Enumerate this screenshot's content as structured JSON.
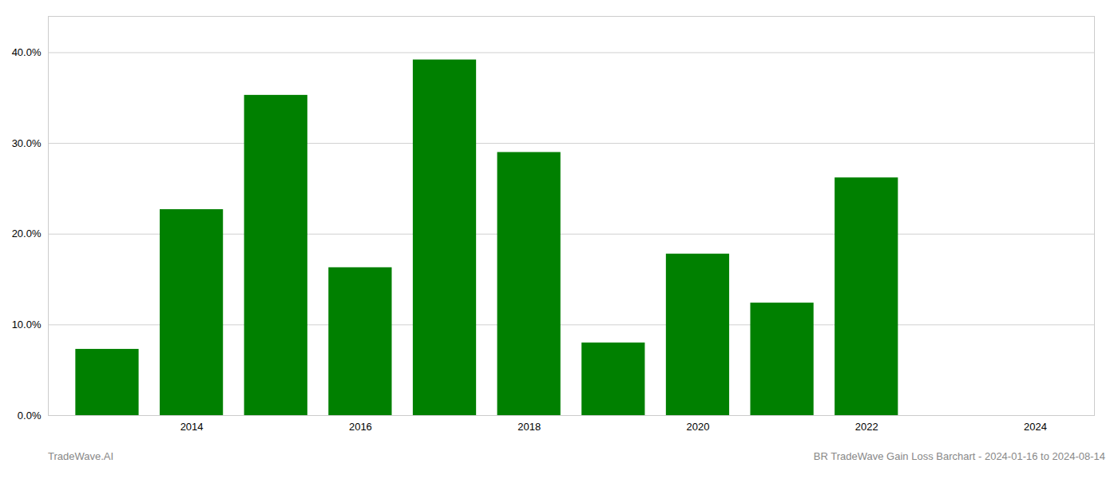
{
  "chart_data": {
    "type": "bar",
    "x": [
      2013,
      2014,
      2015,
      2016,
      2017,
      2018,
      2019,
      2020,
      2021,
      2022,
      2023
    ],
    "values": [
      0.073,
      0.227,
      0.353,
      0.163,
      0.392,
      0.29,
      0.08,
      0.178,
      0.124,
      0.262,
      0.0
    ],
    "color": "#008000",
    "xlim": [
      2012.3,
      2024.7
    ],
    "xticks": [
      2014,
      2016,
      2018,
      2020,
      2022,
      2024
    ],
    "ylim": [
      0,
      0.44
    ],
    "yticks": [
      {
        "value": 0.0,
        "label": "0.0%"
      },
      {
        "value": 0.1,
        "label": "10.0%"
      },
      {
        "value": 0.2,
        "label": "20.0%"
      },
      {
        "value": 0.3,
        "label": "30.0%"
      },
      {
        "value": 0.4,
        "label": "40.0%"
      }
    ],
    "grid": true,
    "annotations": [
      "TradeWave.AI",
      "BR TradeWave Gain Loss Barchart - 2024-01-16 to 2024-08-14"
    ]
  }
}
